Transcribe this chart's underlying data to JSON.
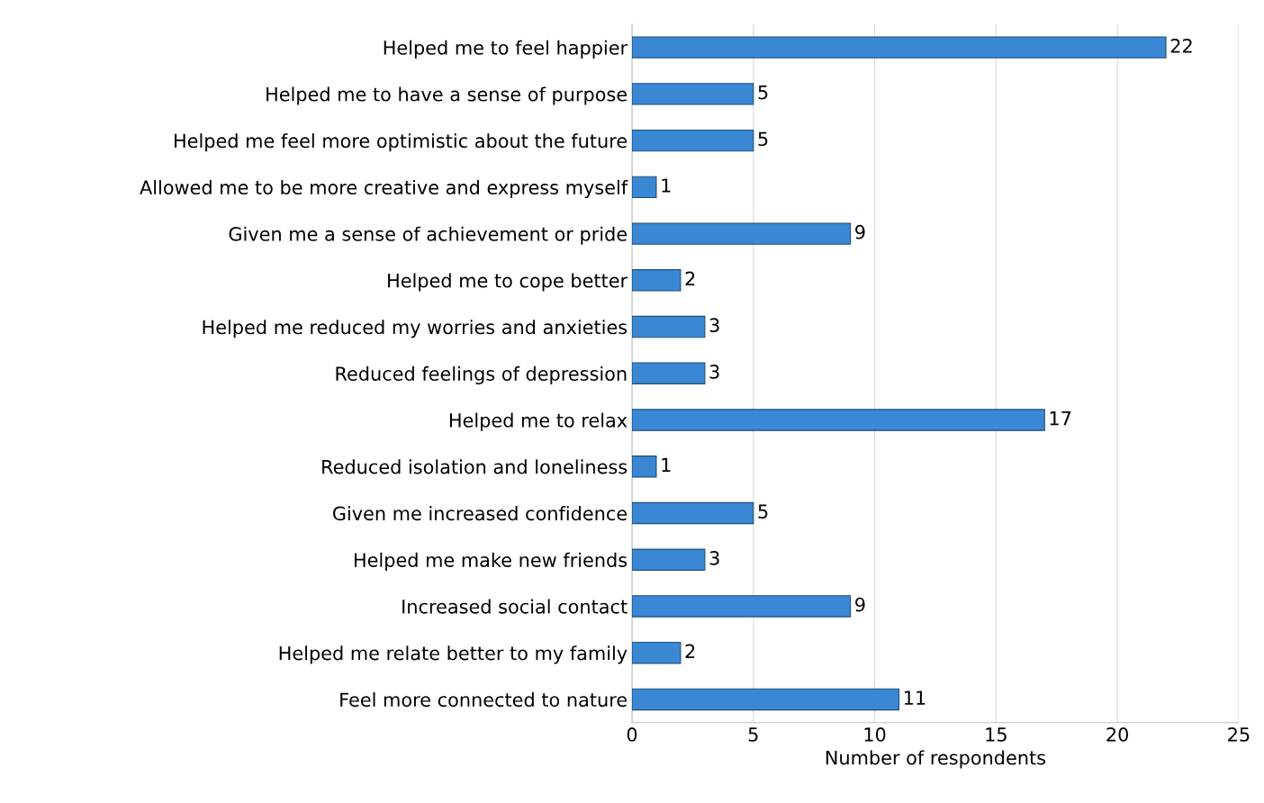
{
  "chart_data": {
    "type": "bar",
    "orientation": "horizontal",
    "categories": [
      "Helped me to feel happier",
      "Helped me to have a sense of purpose",
      "Helped me feel more optimistic about the future",
      "Allowed me to be more creative and express myself",
      "Given me a sense of achievement or pride",
      "Helped me to cope better",
      "Helped me reduced my worries and anxieties",
      "Reduced feelings of depression",
      "Helped me to relax",
      "Reduced isolation and loneliness",
      "Given me increased confidence",
      "Helped me make new friends",
      "Increased social contact",
      "Helped me relate better to my family",
      "Feel more connected to nature"
    ],
    "values": [
      22,
      5,
      5,
      1,
      9,
      2,
      3,
      3,
      17,
      1,
      5,
      3,
      9,
      2,
      11
    ],
    "color": "#3a87d4",
    "xlabel": "Number of respondents",
    "xlim": [
      0,
      25
    ],
    "xticks": [
      0,
      5,
      10,
      15,
      20,
      25
    ],
    "grid": "x",
    "data_labels": true
  }
}
